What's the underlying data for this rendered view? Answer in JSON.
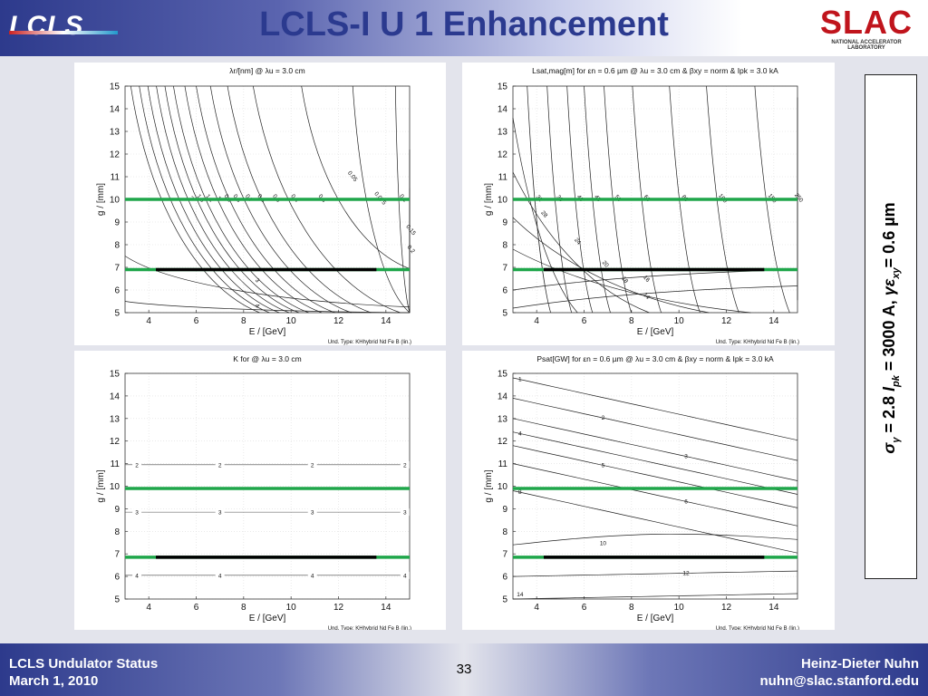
{
  "header": {
    "title": "LCLS-I U 1 Enhancement",
    "left_logo": "LCLS",
    "right_logo": "SLAC",
    "right_logo_sub": "NATIONAL ACCELERATOR LABORATORY"
  },
  "side_note": {
    "sigma": "σ",
    "gamma": "γ",
    "eq1": " = 2.8   ",
    "I": "I",
    "pk": "pk",
    "eq2": " = 3000 A, ",
    "gamma_eps": "γε",
    "xy": "xy",
    "eq3": "= 0.6 µm"
  },
  "footer": {
    "left_line1": "LCLS Undulator Status",
    "left_line2": "March 1, 2010",
    "page": "33",
    "right_line1": "Heinz-Dieter Nuhn",
    "right_line2": "nuhn@slac.stanford.edu"
  },
  "colors": {
    "header_blue": "#2d3a8c",
    "title_blue": "#2b3a8f",
    "slac_red": "#c0141c",
    "green_line": "#1fa64a",
    "black_line": "#000000",
    "contour": "#222222"
  },
  "chart_data": [
    {
      "type": "contour",
      "title": "λr/[nm] @ λu = 3.0 cm",
      "xlabel": "E / [GeV]",
      "ylabel": "g / [mm]",
      "xlim": [
        3,
        15
      ],
      "ylim": [
        5,
        15
      ],
      "xticks": [
        4,
        6,
        8,
        10,
        12,
        14
      ],
      "yticks": [
        5,
        6,
        7,
        8,
        9,
        10,
        11,
        12,
        13,
        14,
        15
      ],
      "footnote": "Und. Type:  KHhybrid  Nd  Fe  B (lin.)",
      "levels": [
        "0.05",
        "0.075",
        "0.1",
        "0.15",
        "0.2",
        "0.3",
        "0.4",
        "0.5",
        "0.6",
        "0.7",
        "0.8",
        "0.9",
        "1",
        "1.1",
        "1.5",
        "2",
        "3",
        "4"
      ],
      "horizontal_lines": [
        {
          "color": "green",
          "g": 10
        },
        {
          "color": "green",
          "g": 6.9
        }
      ],
      "operating_range": {
        "g": 6.9,
        "E": [
          4.3,
          13.6
        ]
      }
    },
    {
      "type": "contour",
      "title": "Lsat,mag[m] for εn = 0.6 µm @ λu = 3.0 cm & βxy = norm & Ipk = 3.0 kA",
      "xlabel": "E / [GeV]",
      "ylabel": "g / [mm]",
      "xlim": [
        3,
        15
      ],
      "ylim": [
        5,
        15
      ],
      "xticks": [
        4,
        6,
        8,
        10,
        12,
        14
      ],
      "yticks": [
        5,
        6,
        7,
        8,
        9,
        10,
        11,
        12,
        13,
        14,
        15
      ],
      "footnote": "Und. Type:  KHhybrid  Nd  Fe  B (lin.)",
      "levels": [
        "14",
        "16",
        "18",
        "20",
        "24",
        "28",
        "32",
        "36",
        "40",
        "45",
        "50",
        "60",
        "80",
        "100",
        "150",
        "250"
      ],
      "horizontal_lines": [
        {
          "color": "green",
          "g": 10
        },
        {
          "color": "green",
          "g": 6.9
        }
      ],
      "operating_range": {
        "g": 6.9,
        "E": [
          4.3,
          13.6
        ]
      }
    },
    {
      "type": "contour",
      "title": "K for @ λu = 3.0 cm",
      "xlabel": "E / [GeV]",
      "ylabel": "g / [mm]",
      "xlim": [
        3,
        15
      ],
      "ylim": [
        5,
        15
      ],
      "xticks": [
        4,
        6,
        8,
        10,
        12,
        14
      ],
      "yticks": [
        5,
        6,
        7,
        8,
        9,
        10,
        11,
        12,
        13,
        14,
        15
      ],
      "footnote": "Und. Type:  KHhybrid  Nd  Fe  B (lin.)",
      "levels": [
        "2",
        "3",
        "4"
      ],
      "horizontal_lines": [
        {
          "color": "green",
          "g": 9.9
        },
        {
          "color": "green",
          "g": 6.85
        }
      ],
      "operating_range": {
        "g": 6.85,
        "E": [
          4.3,
          13.6
        ]
      }
    },
    {
      "type": "contour",
      "title": "Psat[GW] for εn = 0.6 µm @ λu = 3.0 cm & βxy = norm & Ipk = 3.0 kA",
      "xlabel": "E / [GeV]",
      "ylabel": "g / [mm]",
      "xlim": [
        3,
        15
      ],
      "ylim": [
        5,
        15
      ],
      "xticks": [
        4,
        6,
        8,
        10,
        12,
        14
      ],
      "yticks": [
        5,
        6,
        7,
        8,
        9,
        10,
        11,
        12,
        13,
        14,
        15
      ],
      "footnote": "Und. Type:  KHhybrid  Nd  Fe  B (lin.)",
      "levels": [
        "1",
        "2",
        "3",
        "4",
        "5",
        "6",
        "8",
        "10",
        "12",
        "14"
      ],
      "horizontal_lines": [
        {
          "color": "green",
          "g": 9.9
        },
        {
          "color": "green",
          "g": 6.85
        }
      ],
      "operating_range": {
        "g": 6.85,
        "E": [
          4.3,
          13.6
        ]
      }
    }
  ]
}
